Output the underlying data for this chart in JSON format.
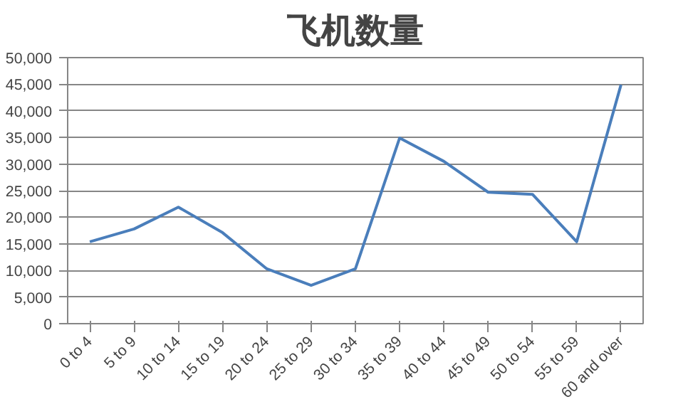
{
  "chart_data": {
    "type": "line",
    "title": "飞机数量",
    "categories": [
      "0 to 4",
      "5 to 9",
      "10 to 14",
      "15 to 19",
      "20 to 24",
      "25 to 29",
      "30 to 34",
      "35 to 39",
      "40 to 44",
      "45 to 49",
      "50 to 54",
      "55 to 59",
      "60 and over"
    ],
    "series": [
      {
        "color": "#4a7ebb",
        "values": [
          15400,
          17800,
          21900,
          17100,
          10300,
          7200,
          10300,
          34900,
          30500,
          24700,
          24300,
          15400,
          44900
        ]
      }
    ],
    "ylim": [
      0,
      50000
    ],
    "yticks": [
      {
        "value": 0,
        "label": "0"
      },
      {
        "value": 5000,
        "label": "5,000"
      },
      {
        "value": 10000,
        "label": "10,000"
      },
      {
        "value": 15000,
        "label": "15,000"
      },
      {
        "value": 20000,
        "label": "20,000"
      },
      {
        "value": 25000,
        "label": "25,000"
      },
      {
        "value": 30000,
        "label": "30,000"
      },
      {
        "value": 35000,
        "label": "35,000"
      },
      {
        "value": 40000,
        "label": "40,000"
      },
      {
        "value": 45000,
        "label": "45,000"
      },
      {
        "value": 50000,
        "label": "50,000"
      }
    ],
    "grid": "y",
    "marker": "none",
    "line_style": "solid"
  }
}
